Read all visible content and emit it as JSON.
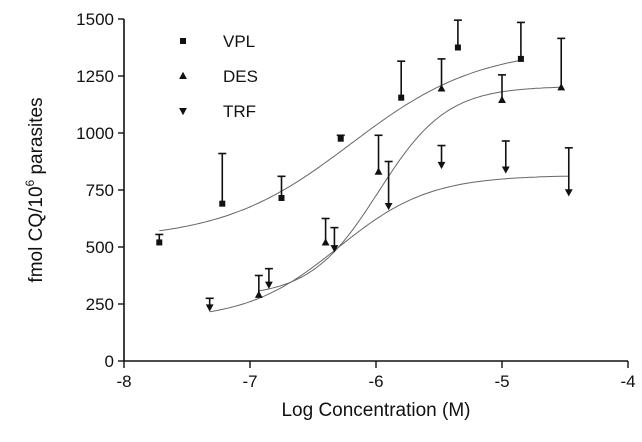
{
  "chart_data": {
    "type": "scatter",
    "xlabel": "Log Concentration (M)",
    "ylabel_prefix": "fmol CQ/10",
    "ylabel_sup": "6",
    "ylabel_suffix": " parasites",
    "xlim": [
      -8,
      -4
    ],
    "ylim": [
      0,
      1500
    ],
    "xticks": [
      -8,
      -7,
      -6,
      -5,
      -4
    ],
    "yticks": [
      0,
      250,
      500,
      750,
      1000,
      1250,
      1500
    ],
    "grid": false,
    "legend_position": "top-left",
    "series": [
      {
        "name": "VPL",
        "marker": "square",
        "points": [
          {
            "x": -7.72,
            "y": 520,
            "err": 35
          },
          {
            "x": -7.22,
            "y": 690,
            "err": 220
          },
          {
            "x": -6.75,
            "y": 715,
            "err": 95
          },
          {
            "x": -6.28,
            "y": 975,
            "err": 15
          },
          {
            "x": -5.8,
            "y": 1155,
            "err": 160
          },
          {
            "x": -5.35,
            "y": 1375,
            "err": 120
          },
          {
            "x": -4.85,
            "y": 1325,
            "err": 160
          }
        ],
        "fit": {
          "bottom": 530,
          "top": 1375,
          "logEC50": -6.2,
          "hill": 0.85
        }
      },
      {
        "name": "DES",
        "marker": "triangle-up",
        "points": [
          {
            "x": -6.93,
            "y": 290,
            "err": 85
          },
          {
            "x": -6.4,
            "y": 520,
            "err": 105
          },
          {
            "x": -5.98,
            "y": 830,
            "err": 160
          },
          {
            "x": -5.48,
            "y": 1195,
            "err": 130
          },
          {
            "x": -5.0,
            "y": 1145,
            "err": 110
          },
          {
            "x": -4.53,
            "y": 1200,
            "err": 215
          }
        ],
        "fit": {
          "bottom": 280,
          "top": 1205,
          "logEC50": -5.98,
          "hill": 1.6
        }
      },
      {
        "name": "TRF",
        "marker": "triangle-down",
        "points": [
          {
            "x": -7.32,
            "y": 235,
            "err": 40
          },
          {
            "x": -6.85,
            "y": 335,
            "err": 70
          },
          {
            "x": -6.33,
            "y": 495,
            "err": 90
          },
          {
            "x": -5.9,
            "y": 680,
            "err": 195
          },
          {
            "x": -5.48,
            "y": 860,
            "err": 85
          },
          {
            "x": -4.97,
            "y": 840,
            "err": 125
          },
          {
            "x": -4.47,
            "y": 740,
            "err": 195
          }
        ],
        "fit": {
          "bottom": 180,
          "top": 815,
          "logEC50": -6.3,
          "hill": 1.2
        }
      }
    ]
  }
}
